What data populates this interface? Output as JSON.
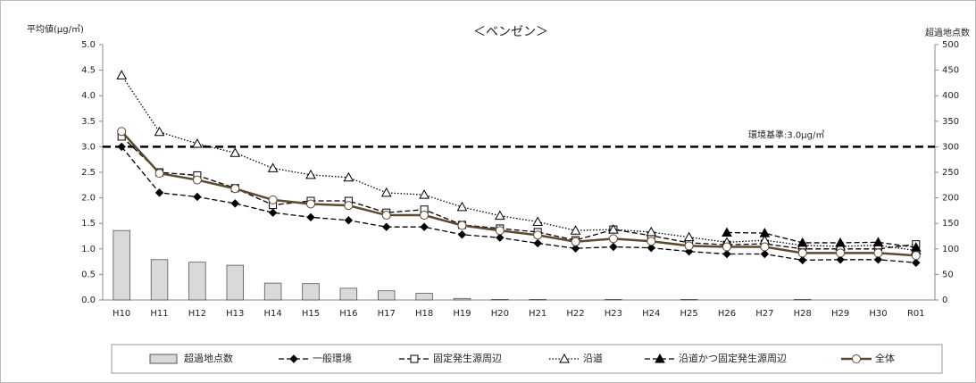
{
  "chart_data": {
    "type": "combo",
    "title": "＜ベンゼン＞",
    "y_label": "平均値(μg/㎥)",
    "y2_label": "超過地点数",
    "categories": [
      "H10",
      "H11",
      "H12",
      "H13",
      "H14",
      "H15",
      "H16",
      "H17",
      "H18",
      "H19",
      "H20",
      "H21",
      "H22",
      "H23",
      "H24",
      "H25",
      "H26",
      "H27",
      "H28",
      "H29",
      "H30",
      "R01"
    ],
    "ylim": [
      0,
      5
    ],
    "yticks": [
      {
        "value": 0,
        "label": "0.0"
      },
      {
        "value": 0.5,
        "label": "0.5"
      },
      {
        "value": 1,
        "label": "1.0"
      },
      {
        "value": 1.5,
        "label": "1.5"
      },
      {
        "value": 2,
        "label": "2.0"
      },
      {
        "value": 2.5,
        "label": "2.5"
      },
      {
        "value": 3,
        "label": "3.0"
      },
      {
        "value": 3.5,
        "label": "3.5"
      },
      {
        "value": 4,
        "label": "4.0"
      },
      {
        "value": 4.5,
        "label": "4.5"
      },
      {
        "value": 5,
        "label": "5.0"
      }
    ],
    "y2lim": [
      0,
      500
    ],
    "y2ticks": [
      0,
      50,
      100,
      150,
      200,
      250,
      300,
      350,
      400,
      450,
      500
    ],
    "reference_line": {
      "value": 3,
      "label": "環境基準:3.0μg/㎥"
    },
    "series": [
      {
        "name": "超過地点数",
        "type": "bar",
        "axis": "y2",
        "color": "#d9d9d9",
        "values": [
          136,
          79,
          74,
          68,
          33,
          32,
          23,
          18,
          13,
          3,
          1,
          1,
          0,
          1,
          0,
          1,
          0,
          0,
          1,
          0,
          0,
          0
        ]
      },
      {
        "name": "一般環境",
        "type": "line",
        "color": "#000000",
        "line_style": "dashed",
        "marker": "diamond",
        "values": [
          3.0,
          2.1,
          2.02,
          1.89,
          1.71,
          1.62,
          1.56,
          1.43,
          1.43,
          1.28,
          1.22,
          1.11,
          1.01,
          1.04,
          1.02,
          0.95,
          0.9,
          0.9,
          0.78,
          0.79,
          0.79,
          0.73
        ]
      },
      {
        "name": "固定発生源周辺",
        "type": "line",
        "color": "#000000",
        "line_style": "dashed",
        "marker": "square",
        "values": [
          3.2,
          2.5,
          2.44,
          2.19,
          1.86,
          1.94,
          1.94,
          1.71,
          1.77,
          1.47,
          1.4,
          1.33,
          1.17,
          1.38,
          1.26,
          1.12,
          1.08,
          1.1,
          1.0,
          1.0,
          1.0,
          1.09
        ]
      },
      {
        "name": "沿道",
        "type": "line",
        "color": "#000000",
        "line_style": "dotted",
        "marker": "triangle",
        "values": [
          4.4,
          3.29,
          3.06,
          2.88,
          2.58,
          2.45,
          2.4,
          2.1,
          2.06,
          1.82,
          1.65,
          1.53,
          1.36,
          1.38,
          1.33,
          1.23,
          1.13,
          1.17,
          1.07,
          1.05,
          1.07,
          0.97
        ]
      },
      {
        "name": "沿道かつ固定発生源周辺",
        "type": "line",
        "color": "#000000",
        "line_style": "dashed",
        "marker": "filled-triangle",
        "values": [
          null,
          null,
          null,
          null,
          null,
          null,
          null,
          null,
          null,
          null,
          null,
          null,
          null,
          null,
          null,
          null,
          1.32,
          1.31,
          1.12,
          1.12,
          1.13,
          1.03
        ]
      },
      {
        "name": "全体",
        "type": "line",
        "color": "#5b4a2e",
        "line_style": "solid",
        "marker": "circle",
        "values": [
          3.3,
          2.48,
          2.35,
          2.18,
          1.96,
          1.88,
          1.85,
          1.66,
          1.66,
          1.46,
          1.36,
          1.27,
          1.14,
          1.2,
          1.15,
          1.06,
          1.04,
          1.04,
          0.92,
          0.92,
          0.92,
          0.87
        ]
      }
    ]
  }
}
